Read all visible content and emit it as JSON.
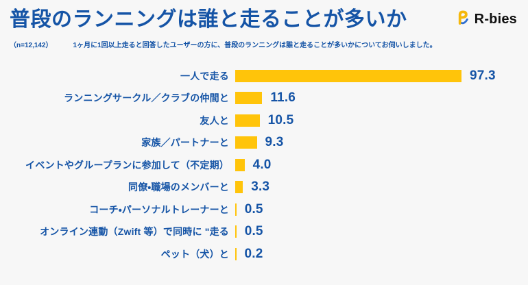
{
  "header": {
    "title": "普段のランニングは誰と走ることが多いか",
    "logo_text": "R-bies"
  },
  "subtitle": {
    "sample": "（n=12,142）",
    "description": "1ヶ月に1回以上走ると回答したユーザーの方に、普段のランニングは誰と走ることが多いかについてお伺いしました。"
  },
  "colors": {
    "text_blue": "#1554A6",
    "bar_yellow": "#FFC40A",
    "background": "#F7F7F7",
    "logo_black": "#111111"
  },
  "icons": {
    "logo_mark": "r-bies-logo-icon"
  },
  "chart_data": {
    "type": "bar",
    "orientation": "horizontal",
    "title": "普段のランニングは誰と走ることが多いか",
    "xlabel": "",
    "ylabel": "",
    "xlim": [
      0,
      100
    ],
    "grid": false,
    "legend": "none",
    "categories": [
      "一人で走る",
      "ランニングサークル／クラブの仲間と",
      "友人と",
      "家族／パートナーと",
      "イベントやグループランに参加して（不定期）",
      "同僚・職場のメンバーと",
      "コーチ・パーソナルトレーナーと",
      "オンライン連動（Zwift 等）で同時に \"走る",
      "ペット（犬）と"
    ],
    "values": [
      97.3,
      11.6,
      10.5,
      9.3,
      4.0,
      3.3,
      0.5,
      0.5,
      0.2
    ],
    "value_labels": [
      "97.3",
      "11.6",
      "10.5",
      "9.3",
      "4.0",
      "3.3",
      "0.5",
      "0.5",
      "0.2"
    ]
  }
}
